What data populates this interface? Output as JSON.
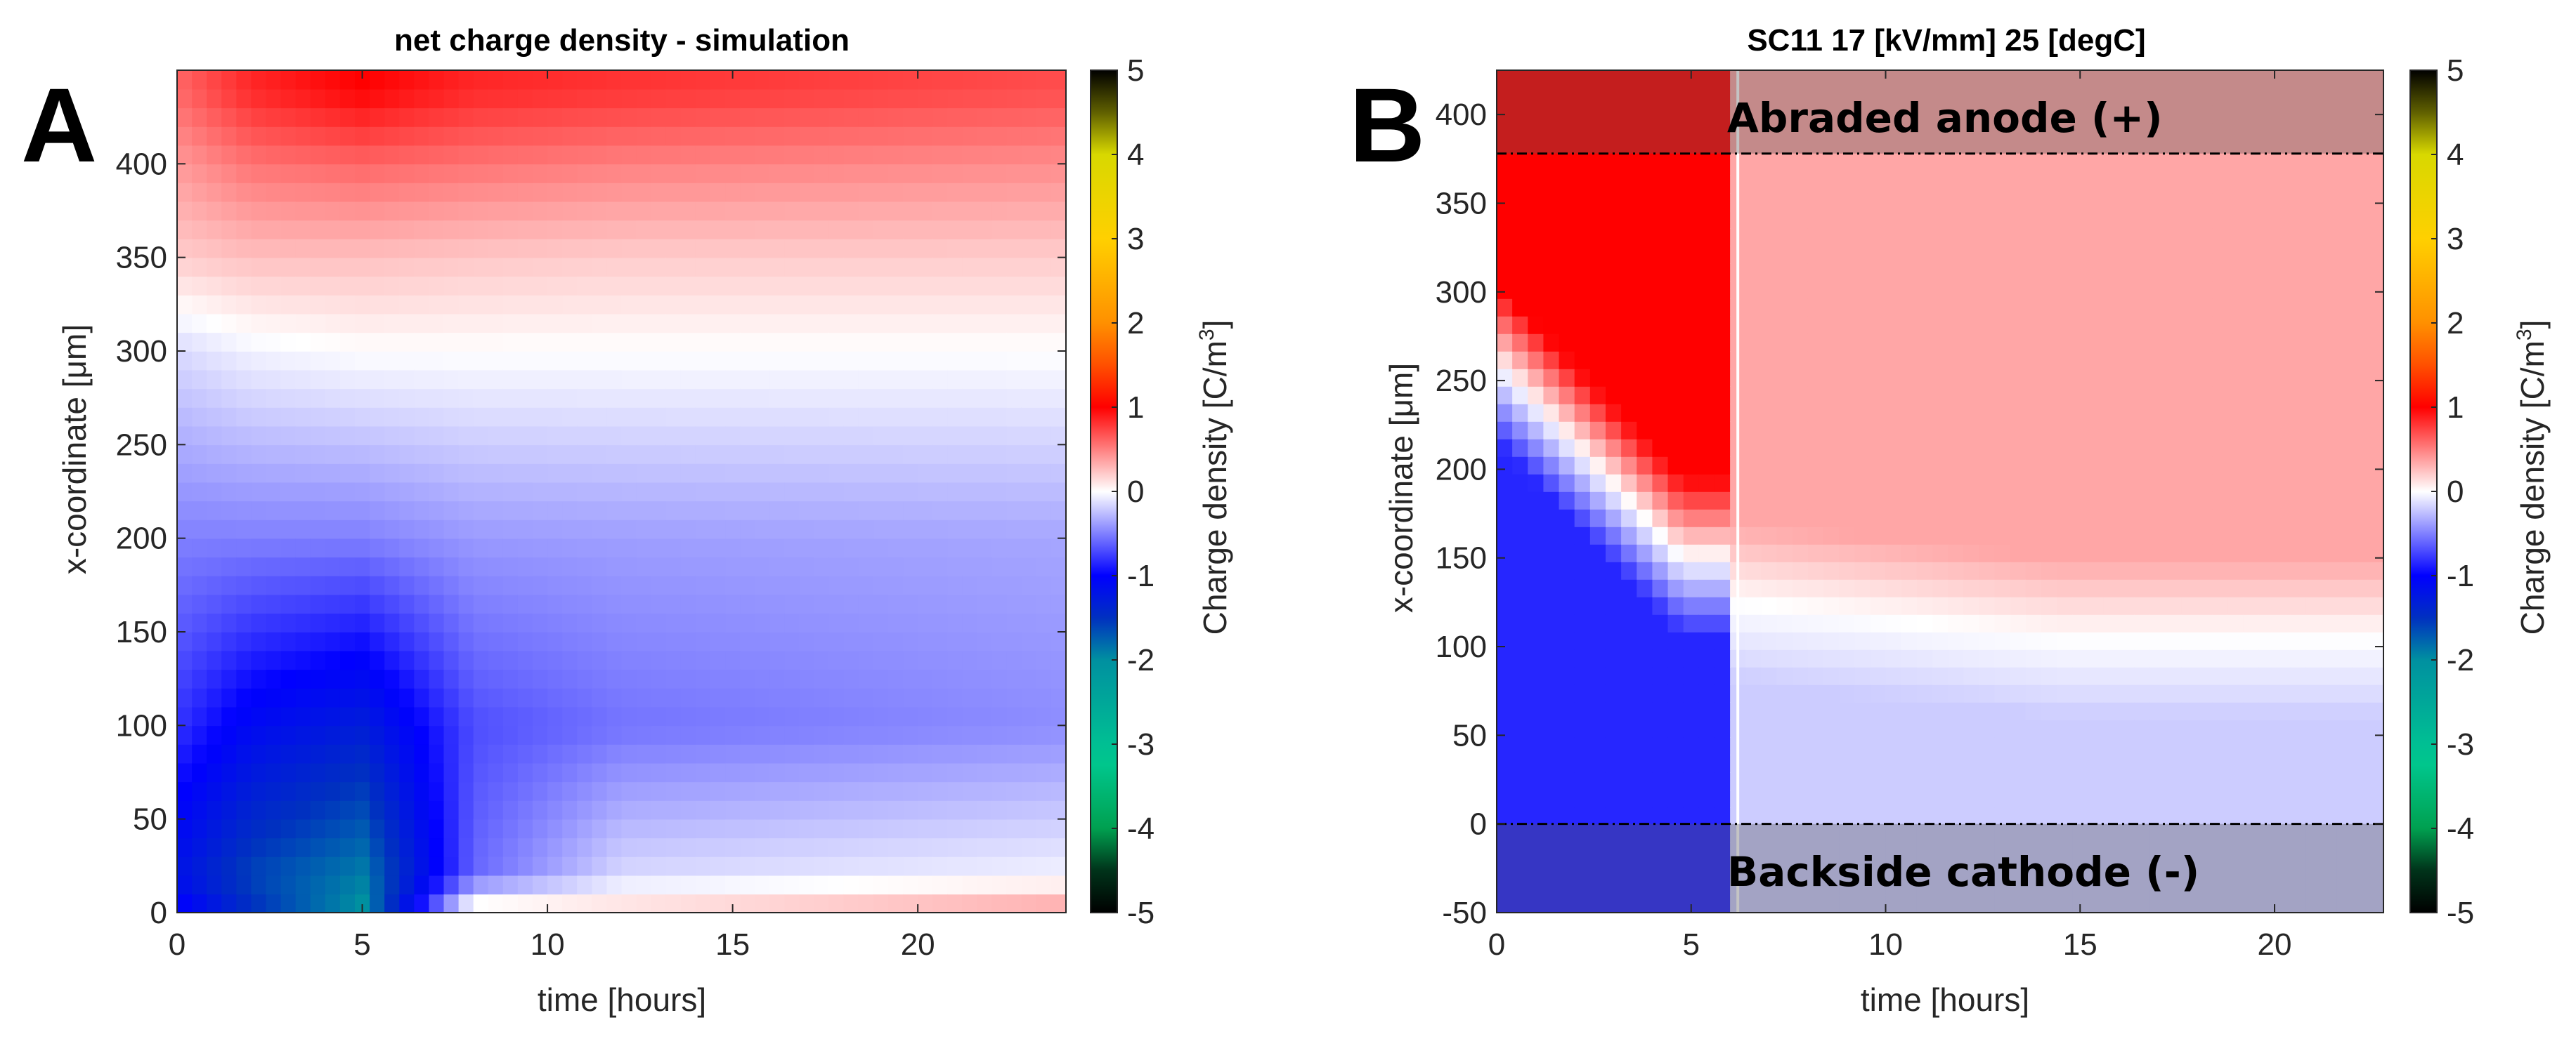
{
  "chart_data": [
    {
      "type": "heatmap",
      "panel_label": "A",
      "title": "net charge density - simulation",
      "xlabel": "time [hours]",
      "ylabel": "x-coordinate [μm]",
      "xlim": [
        0,
        24
      ],
      "ylim": [
        0,
        450
      ],
      "xticks": [
        0,
        5,
        10,
        15,
        20
      ],
      "yticks": [
        0,
        50,
        100,
        150,
        200,
        250,
        300,
        350,
        400
      ],
      "colorbar": {
        "label": "Charge density [C/m",
        "label_superscript": "3",
        "label_close": "]",
        "range": [
          -5,
          5
        ],
        "ticks": [
          5,
          4,
          3,
          2,
          1,
          0,
          -1,
          -2,
          -3,
          -4,
          -5
        ]
      },
      "approximate_field": [
        {
          "x_um": 440,
          "t_h": [
            0,
            2,
            5,
            8,
            12,
            24
          ],
          "rho": [
            0.6,
            0.85,
            1.0,
            0.85,
            0.8,
            0.7
          ]
        },
        {
          "x_um": 400,
          "t_h": [
            0,
            2,
            5,
            8,
            12,
            24
          ],
          "rho": [
            0.4,
            0.55,
            0.6,
            0.55,
            0.5,
            0.45
          ]
        },
        {
          "x_um": 350,
          "t_h": [
            0,
            2,
            5,
            8,
            12,
            24
          ],
          "rho": [
            0.2,
            0.25,
            0.25,
            0.22,
            0.2,
            0.2
          ]
        },
        {
          "x_um": 300,
          "t_h": [
            0,
            2,
            5,
            8,
            12,
            24
          ],
          "rho": [
            -0.15,
            -0.05,
            0.0,
            0.0,
            0.0,
            0.0
          ]
        },
        {
          "x_um": 200,
          "t_h": [
            0,
            2,
            5,
            8,
            12,
            24
          ],
          "rho": [
            -0.5,
            -0.5,
            -0.5,
            -0.4,
            -0.38,
            -0.35
          ]
        },
        {
          "x_um": 100,
          "t_h": [
            0,
            2,
            5,
            8,
            12,
            24
          ],
          "rho": [
            -0.8,
            -1.1,
            -1.3,
            -0.7,
            -0.55,
            -0.45
          ]
        },
        {
          "x_um": 20,
          "t_h": [
            0,
            2,
            5,
            8,
            12,
            24
          ],
          "rho": [
            -1.2,
            -1.6,
            -1.9,
            -0.6,
            -0.15,
            -0.05
          ]
        },
        {
          "x_um": 5,
          "t_h": [
            0,
            2,
            5,
            8,
            12,
            24
          ],
          "rho": [
            -1.0,
            -1.5,
            -2.0,
            0.0,
            0.1,
            0.3
          ]
        }
      ]
    },
    {
      "type": "heatmap",
      "panel_label": "B",
      "title": "SC11 17 [kV/mm] 25 [degC]",
      "xlabel": "time [hours]",
      "ylabel": "x-coordinate [μm]",
      "xlim": [
        0,
        22.8
      ],
      "ylim": [
        -50,
        425
      ],
      "xticks": [
        0,
        5,
        10,
        15,
        20
      ],
      "yticks": [
        -50,
        0,
        50,
        100,
        150,
        200,
        250,
        300,
        350,
        400
      ],
      "colorbar": {
        "label": "Charge density [C/m",
        "label_superscript": "3",
        "label_close": "]",
        "range": [
          -5,
          5
        ],
        "ticks": [
          5,
          4,
          3,
          2,
          1,
          0,
          -1,
          -2,
          -3,
          -4,
          -5
        ]
      },
      "annotations": {
        "anode_label": "Abraded anode (+)",
        "cathode_label": "Backside cathode (-)",
        "anode_line_x_um": 378,
        "cathode_line_x_um": 0,
        "discontinuity_time_h": 6.2
      },
      "approximate_field": [
        {
          "segment": "0-6.2h",
          "zero_crossing_x_um": [
            260,
            150
          ],
          "upper_rho": 1.0,
          "lower_rho": -0.85
        },
        {
          "segment": "6.2-22.8h",
          "zero_crossing_x_um": [
            125,
            105
          ],
          "upper_rho": 0.35,
          "lower_rho": -0.2
        }
      ]
    }
  ]
}
